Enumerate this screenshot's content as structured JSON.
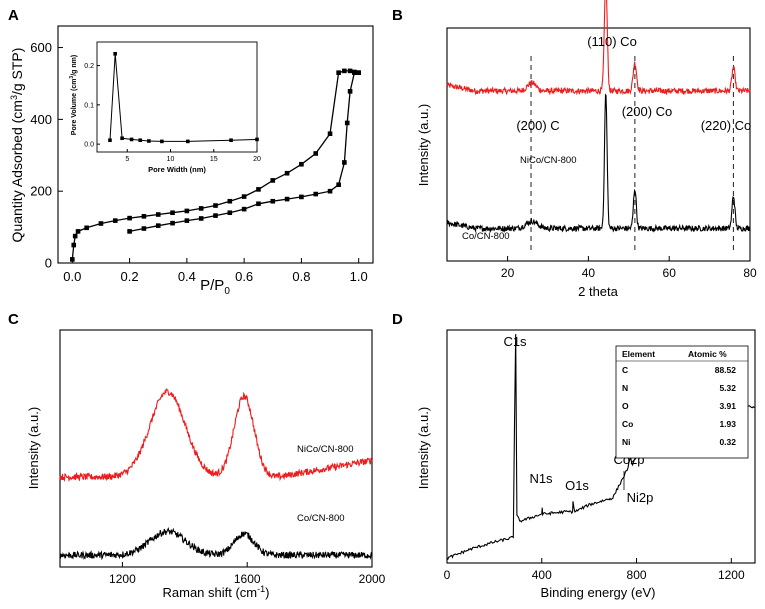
{
  "chart_data": [
    {
      "panel": "A",
      "type": "line",
      "title": "",
      "xlabel": "P/P",
      "xlabel_sub": "0",
      "ylabel_pre": "Quantity Adsorbed (cm",
      "ylabel_sup": "3",
      "ylabel_post": "/g STP)",
      "xlim": [
        -0.05,
        1.05
      ],
      "ylim": [
        0,
        660
      ],
      "xticks": [
        0.0,
        0.2,
        0.4,
        0.6,
        0.8,
        1.0
      ],
      "xtick_labels": [
        "0.0",
        "0.2",
        "0.4",
        "0.6",
        "0.8",
        "1.0"
      ],
      "yticks": [
        0,
        200,
        400,
        600
      ],
      "ytick_labels": [
        "0",
        "200",
        "400",
        "600"
      ],
      "series": [
        {
          "name": "adsorption",
          "color": "#000000",
          "x": [
            0.0,
            0.005,
            0.01,
            0.02,
            0.05,
            0.1,
            0.15,
            0.2,
            0.25,
            0.3,
            0.35,
            0.4,
            0.45,
            0.5,
            0.55,
            0.6,
            0.65,
            0.7,
            0.75,
            0.8,
            0.85,
            0.9,
            0.93,
            0.95,
            0.97,
            0.985,
            1.0
          ],
          "y": [
            10,
            50,
            75,
            88,
            98,
            110,
            118,
            125,
            130,
            135,
            140,
            145,
            152,
            160,
            172,
            185,
            205,
            230,
            250,
            275,
            305,
            360,
            530,
            535,
            535,
            532,
            530
          ]
        },
        {
          "name": "desorption",
          "color": "#000000",
          "x": [
            1.0,
            0.985,
            0.97,
            0.96,
            0.95,
            0.93,
            0.9,
            0.85,
            0.8,
            0.75,
            0.7,
            0.65,
            0.6,
            0.55,
            0.5,
            0.45,
            0.4,
            0.35,
            0.3,
            0.25,
            0.2
          ],
          "y": [
            530,
            530,
            478,
            390,
            280,
            218,
            200,
            192,
            184,
            178,
            172,
            165,
            150,
            140,
            132,
            124,
            118,
            111,
            104,
            96,
            88
          ]
        }
      ],
      "inset": {
        "type": "line",
        "xlabel": "Pore Width (nm)",
        "ylabel_pre": "Pore Volume (cm",
        "ylabel_sup": "3",
        "ylabel_post": "/g nm)",
        "xlim": [
          1.5,
          20
        ],
        "ylim": [
          -0.02,
          0.26
        ],
        "xticks": [
          5,
          10,
          15,
          20
        ],
        "xtick_labels": [
          "5",
          "10",
          "15",
          "20"
        ],
        "yticks": [
          0.0,
          0.1,
          0.2
        ],
        "ytick_labels": [
          "0.0",
          "0.1",
          "0.2"
        ],
        "series": [
          {
            "name": "pore distribution",
            "color": "#000000",
            "x": [
              3.0,
              3.6,
              4.4,
              5.5,
              6.5,
              7.5,
              9.0,
              12.0,
              17.0,
              20.0
            ],
            "y": [
              0.01,
              0.23,
              0.015,
              0.012,
              0.01,
              0.008,
              0.007,
              0.007,
              0.01,
              0.012
            ]
          }
        ]
      }
    },
    {
      "panel": "B",
      "type": "line",
      "title": "",
      "xlabel": "2 theta",
      "ylabel": "Intensity (a.u.)",
      "xlim": [
        5,
        80
      ],
      "ylim": [
        0,
        100
      ],
      "xticks": [
        20,
        40,
        60,
        80
      ],
      "xtick_labels": [
        "20",
        "40",
        "60",
        "80"
      ],
      "series": [
        {
          "name": "NiCo/CN-800",
          "color": "#ee1c1c",
          "baseline": 73,
          "peaks": [
            [
              26,
              3.5,
              1.5
            ],
            [
              44.3,
              47,
              0.5
            ],
            [
              51.5,
              12,
              0.6
            ],
            [
              75.9,
              10,
              0.55
            ]
          ]
        },
        {
          "name": "Co/CN-800",
          "color": "#000000",
          "baseline": 14,
          "peaks": [
            [
              26,
              3.0,
              2.0
            ],
            [
              44.3,
              58,
              0.45
            ],
            [
              51.5,
              17,
              0.5
            ],
            [
              75.9,
              14,
              0.5
            ]
          ]
        }
      ],
      "reference_lines": [
        25.8,
        51.5,
        75.9
      ],
      "annotations": [
        "(110) Co",
        "(200) C",
        "(200) Co",
        "(220) Co"
      ]
    },
    {
      "panel": "C",
      "type": "line",
      "title": "",
      "xlabel": "Raman shift (cm",
      "xlabel_sup": "-1",
      "xlabel_post": ")",
      "ylabel": "Intensity (a.u.)",
      "xlim": [
        1000,
        2000
      ],
      "ylim": [
        0,
        100
      ],
      "xticks": [
        1200,
        1600,
        2000
      ],
      "xtick_labels": [
        "1200",
        "1600",
        "2000"
      ],
      "series": [
        {
          "name": "NiCo/CN-800",
          "color": "#ee1c1c",
          "baseline": 38,
          "end_baseline": 45,
          "peaks": [
            [
              1345,
              36,
              80
            ],
            [
              1590,
              34,
              45
            ]
          ]
        },
        {
          "name": "Co/CN-800",
          "color": "#000000",
          "baseline": 5,
          "end_baseline": 5,
          "peaks": [
            [
              1345,
              10,
              80
            ],
            [
              1590,
              9,
              45
            ]
          ]
        }
      ]
    },
    {
      "panel": "D",
      "type": "line",
      "title": "",
      "xlabel": "Binding energy (eV)",
      "ylabel": "Intensity (a.u.)",
      "xlim": [
        0,
        1300
      ],
      "ylim": [
        0,
        100
      ],
      "xticks": [
        0,
        400,
        800,
        1200
      ],
      "xtick_labels": [
        "0",
        "400",
        "800",
        "1200"
      ],
      "series": [
        {
          "name": "XPS survey",
          "color": "#000000",
          "x": [
            0,
            50,
            100,
            200,
            280,
            285,
            290,
            295,
            310,
            400,
            402,
            404,
            500,
            530,
            532,
            540,
            600,
            700,
            760,
            775,
            780,
            790,
            800,
            850,
            853,
            860,
            900,
            1000,
            1100,
            1200,
            1215,
            1230,
            1250,
            1300
          ],
          "y": [
            2,
            4,
            6,
            9,
            11,
            60,
            98,
            20,
            18,
            21,
            24,
            21,
            22,
            22,
            26,
            22,
            25,
            28,
            40,
            45,
            42,
            44,
            46,
            48,
            52,
            49,
            52,
            55,
            58,
            60,
            74,
            70,
            68,
            67
          ]
        }
      ],
      "annotations": [
        "C1s",
        "N1s",
        "O1s",
        "Co2p",
        "Ni2p"
      ]
    }
  ],
  "panel_labels": [
    "A",
    "B",
    "C",
    "D"
  ],
  "table": {
    "headers": [
      "Element",
      "Atomic %"
    ],
    "rows": [
      [
        "C",
        "88.52"
      ],
      [
        "N",
        "5.32"
      ],
      [
        "O",
        "3.91"
      ],
      [
        "Co",
        "1.93"
      ],
      [
        "Ni",
        "0.32"
      ]
    ]
  }
}
